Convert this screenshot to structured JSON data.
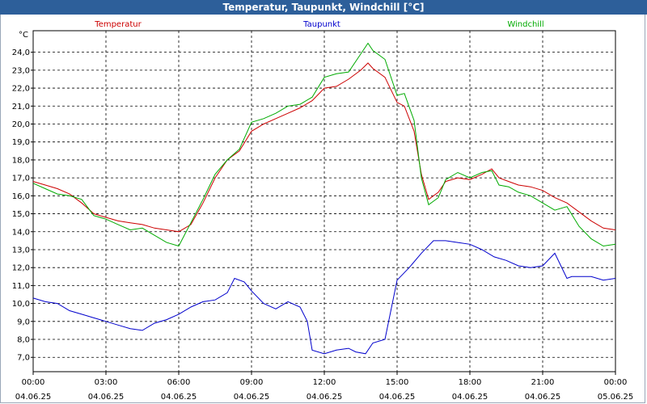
{
  "window_title": "Temperatur, Taupunkt, Windchill [°C]",
  "chart_data": {
    "type": "line",
    "title": "Temperatur, Taupunkt, Windchill [°C]",
    "ylabel": "°C",
    "xlabel": "",
    "ylim": [
      6.2,
      25.2
    ],
    "xlim": [
      0,
      24
    ],
    "grid": true,
    "legend_position": "top",
    "y_ticks": [
      "7,0",
      "8,0",
      "9,0",
      "10,0",
      "11,0",
      "12,0",
      "13,0",
      "14,0",
      "15,0",
      "16,0",
      "17,0",
      "18,0",
      "19,0",
      "20,0",
      "21,0",
      "22,0",
      "23,0",
      "24,0"
    ],
    "x_ticks": [
      {
        "time": "00:00",
        "date": "04.06.25"
      },
      {
        "time": "03:00",
        "date": "04.06.25"
      },
      {
        "time": "06:00",
        "date": "04.06.25"
      },
      {
        "time": "09:00",
        "date": "04.06.25"
      },
      {
        "time": "12:00",
        "date": "04.06.25"
      },
      {
        "time": "15:00",
        "date": "04.06.25"
      },
      {
        "time": "18:00",
        "date": "04.06.25"
      },
      {
        "time": "21:00",
        "date": "04.06.25"
      },
      {
        "time": "00:00",
        "date": "05.06.25"
      }
    ],
    "series": [
      {
        "name": "Temperatur",
        "color": "#cc0000",
        "x": [
          0,
          0.5,
          1,
          1.5,
          2,
          2.5,
          3,
          3.5,
          4,
          4.5,
          5,
          5.5,
          6,
          6.5,
          7,
          7.5,
          8,
          8.5,
          9,
          9.5,
          10,
          10.5,
          11,
          11.5,
          12,
          12.5,
          13,
          13.5,
          13.8,
          14,
          14.5,
          15,
          15.3,
          15.7,
          16,
          16.3,
          16.7,
          17,
          17.5,
          18,
          18.5,
          18.9,
          19.2,
          19.6,
          20,
          20.5,
          21,
          21.5,
          22,
          22.5,
          23,
          23.5,
          24
        ],
        "values": [
          16.8,
          16.6,
          16.4,
          16.1,
          15.6,
          15.0,
          14.8,
          14.6,
          14.5,
          14.4,
          14.2,
          14.1,
          14.0,
          14.4,
          15.6,
          17.0,
          18.0,
          18.5,
          19.6,
          20.0,
          20.3,
          20.6,
          20.9,
          21.3,
          22.0,
          22.1,
          22.5,
          23.0,
          23.4,
          23.1,
          22.6,
          21.2,
          21.0,
          19.6,
          17.2,
          15.8,
          16.2,
          16.8,
          17.0,
          16.9,
          17.2,
          17.5,
          17.0,
          16.8,
          16.6,
          16.5,
          16.3,
          15.9,
          15.6,
          15.1,
          14.6,
          14.2,
          14.1
        ]
      },
      {
        "name": "Taupunkt",
        "color": "#0000cc",
        "x": [
          0,
          0.5,
          1,
          1.5,
          2,
          2.5,
          3,
          3.5,
          4,
          4.5,
          5,
          5.5,
          6,
          6.5,
          7,
          7.5,
          8,
          8.3,
          8.7,
          9,
          9.5,
          10,
          10.5,
          11,
          11.3,
          11.5,
          12,
          12.5,
          13,
          13.3,
          13.7,
          14,
          14.5,
          15,
          15.5,
          16,
          16.5,
          17,
          17.5,
          18,
          18.5,
          19,
          19.5,
          20,
          20.5,
          21,
          21.5,
          22,
          22.2,
          22.5,
          23,
          23.5,
          24
        ],
        "values": [
          10.3,
          10.1,
          10.0,
          9.6,
          9.4,
          9.2,
          9.0,
          8.8,
          8.6,
          8.5,
          8.9,
          9.1,
          9.4,
          9.8,
          10.1,
          10.2,
          10.6,
          11.4,
          11.2,
          10.7,
          10.0,
          9.7,
          10.1,
          9.8,
          9.0,
          7.4,
          7.2,
          7.4,
          7.5,
          7.3,
          7.2,
          7.8,
          8.0,
          11.3,
          12.0,
          12.8,
          13.5,
          13.5,
          13.4,
          13.3,
          13.0,
          12.6,
          12.4,
          12.1,
          12.0,
          12.1,
          12.8,
          11.4,
          11.5,
          11.5,
          11.5,
          11.3,
          11.4
        ]
      },
      {
        "name": "Windchill",
        "color": "#00aa00",
        "x": [
          0,
          0.5,
          1,
          1.5,
          2,
          2.5,
          3,
          3.5,
          4,
          4.5,
          5,
          5.5,
          6,
          6.5,
          7,
          7.5,
          8,
          8.5,
          9,
          9.5,
          10,
          10.5,
          11,
          11.5,
          12,
          12.5,
          13,
          13.5,
          13.8,
          14,
          14.5,
          15,
          15.3,
          15.7,
          16,
          16.3,
          16.7,
          17,
          17.5,
          18,
          18.5,
          18.9,
          19.2,
          19.6,
          20,
          20.5,
          21,
          21.5,
          22,
          22.5,
          23,
          23.5,
          24
        ],
        "values": [
          16.7,
          16.4,
          16.1,
          16.0,
          15.8,
          14.9,
          14.7,
          14.4,
          14.1,
          14.2,
          13.8,
          13.4,
          13.2,
          14.5,
          15.8,
          17.2,
          18.0,
          18.6,
          20.1,
          20.3,
          20.6,
          21.0,
          21.1,
          21.5,
          22.6,
          22.8,
          22.9,
          23.9,
          24.5,
          24.1,
          23.6,
          21.6,
          21.7,
          20.2,
          17.0,
          15.5,
          15.9,
          16.9,
          17.3,
          17.0,
          17.3,
          17.4,
          16.6,
          16.5,
          16.2,
          16.0,
          15.6,
          15.2,
          15.4,
          14.3,
          13.6,
          13.2,
          13.3
        ]
      }
    ]
  }
}
